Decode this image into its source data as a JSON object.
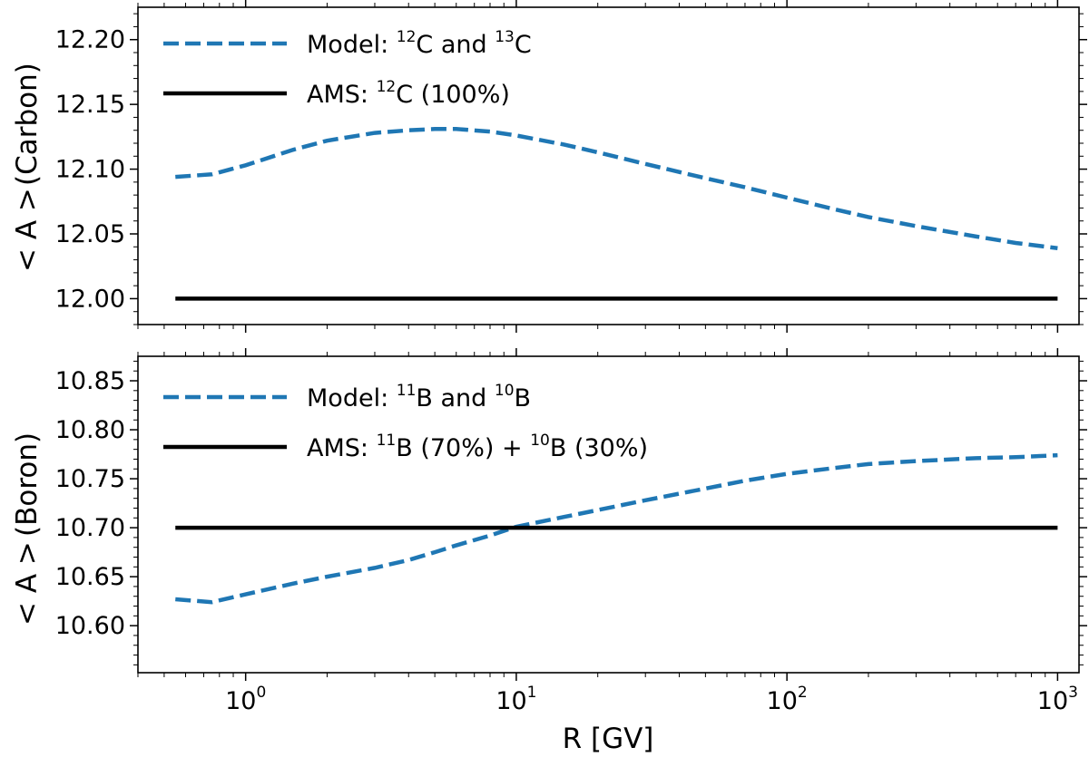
{
  "chart_data": [
    {
      "type": "line",
      "panel": "top",
      "ylabel_main": "< A >",
      "ylabel_element": "(Carbon)",
      "xscale": "log",
      "xlim": [
        0.4,
        1200
      ],
      "ylim": [
        11.98,
        12.225
      ],
      "yticks": [
        12.0,
        12.05,
        12.1,
        12.15,
        12.2
      ],
      "ytick_labels": [
        "12.00",
        "12.05",
        "12.10",
        "12.15",
        "12.20"
      ],
      "legend_position": "top-left",
      "series": [
        {
          "name": "Model: 12C and 13C",
          "legend_parts": [
            "Model: ",
            "12",
            "C and ",
            "13",
            "C"
          ],
          "color": "#1f77b4",
          "style": "dashed",
          "x": [
            0.55,
            0.75,
            1.0,
            1.5,
            2,
            3,
            4,
            5,
            6,
            8,
            10,
            15,
            20,
            30,
            50,
            70,
            100,
            150,
            200,
            300,
            500,
            700,
            1000
          ],
          "y": [
            12.094,
            12.096,
            12.103,
            12.115,
            12.122,
            12.128,
            12.13,
            12.131,
            12.131,
            12.129,
            12.126,
            12.119,
            12.113,
            12.104,
            12.093,
            12.086,
            12.078,
            12.069,
            12.063,
            12.056,
            12.048,
            12.043,
            12.039
          ]
        },
        {
          "name": "AMS: 12C (100%)",
          "legend_parts": [
            "AMS: ",
            "12",
            "C (100%)"
          ],
          "color": "#000000",
          "style": "solid",
          "x": [
            0.55,
            1000
          ],
          "y": [
            12.0,
            12.0
          ]
        }
      ]
    },
    {
      "type": "line",
      "panel": "bottom",
      "ylabel_main": "< A >",
      "ylabel_element": "(Boron)",
      "xlabel": "R [GV]",
      "xscale": "log",
      "xlim": [
        0.4,
        1200
      ],
      "ylim": [
        10.552,
        10.875
      ],
      "yticks": [
        10.6,
        10.65,
        10.7,
        10.75,
        10.8,
        10.85
      ],
      "ytick_labels": [
        "10.60",
        "10.65",
        "10.70",
        "10.75",
        "10.80",
        "10.85"
      ],
      "xticks": [
        1,
        10,
        100,
        1000
      ],
      "xtick_labels": [
        {
          "base": "10",
          "exp": "0"
        },
        {
          "base": "10",
          "exp": "1"
        },
        {
          "base": "10",
          "exp": "2"
        },
        {
          "base": "10",
          "exp": "3"
        }
      ],
      "legend_position": "top-left",
      "series": [
        {
          "name": "Model: 11B and 10B",
          "legend_parts": [
            "Model: ",
            "11",
            "B and ",
            "10",
            "B"
          ],
          "color": "#1f77b4",
          "style": "dashed",
          "x": [
            0.55,
            0.75,
            1.0,
            1.5,
            2,
            3,
            4,
            5,
            6,
            8,
            10,
            15,
            20,
            30,
            50,
            70,
            100,
            150,
            200,
            300,
            500,
            700,
            1000
          ],
          "y": [
            10.627,
            10.624,
            10.632,
            10.643,
            10.65,
            10.659,
            10.667,
            10.675,
            10.682,
            10.692,
            10.701,
            10.711,
            10.718,
            10.728,
            10.74,
            10.748,
            10.755,
            10.761,
            10.765,
            10.768,
            10.771,
            10.772,
            10.774
          ]
        },
        {
          "name": "AMS: 11B (70%) + 10B (30%)",
          "legend_parts": [
            "AMS: ",
            "11",
            "B (70%) + ",
            "10",
            "B (30%)"
          ],
          "color": "#000000",
          "style": "solid",
          "x": [
            0.55,
            1000
          ],
          "y": [
            10.7,
            10.7
          ]
        }
      ]
    }
  ]
}
